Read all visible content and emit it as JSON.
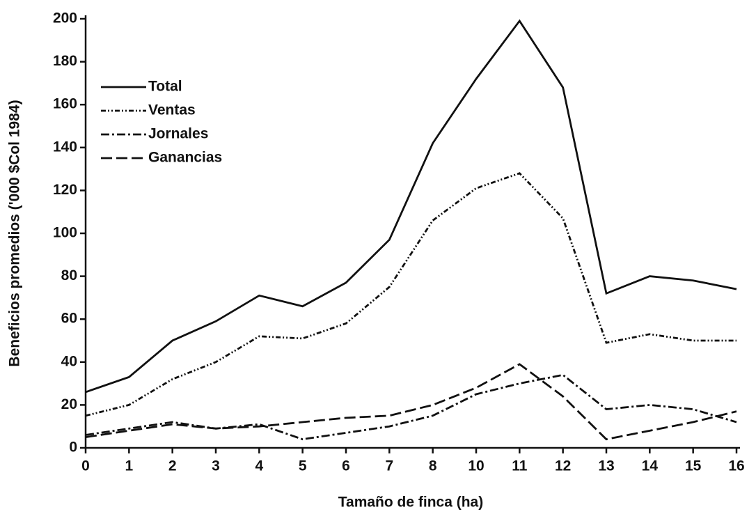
{
  "chart_data": {
    "type": "line",
    "xlabel": "Tamaño de finca (ha)",
    "ylabel": "Beneficios promedios ('000 $Col 1984)",
    "categories": [
      "0",
      "1",
      "2",
      "3",
      "4",
      "5",
      "6",
      "7",
      "8",
      "10",
      "11",
      "12",
      "13",
      "14",
      "15",
      "16"
    ],
    "series": [
      {
        "name": "Total",
        "color": "#111111",
        "style": "solid",
        "values": [
          26,
          33,
          50,
          59,
          71,
          66,
          77,
          97,
          142,
          172,
          199,
          168,
          72,
          80,
          78,
          74
        ]
      },
      {
        "name": "Ventas",
        "color": "#111111",
        "style": "dash-dot-dot",
        "values": [
          15,
          20,
          32,
          40,
          52,
          51,
          58,
          75,
          106,
          121,
          128,
          107,
          49,
          53,
          50,
          50
        ]
      },
      {
        "name": "Jornales",
        "color": "#111111",
        "style": "dash-dot",
        "values": [
          6,
          9,
          12,
          9,
          11,
          4,
          7,
          10,
          15,
          25,
          30,
          34,
          18,
          20,
          18,
          12
        ]
      },
      {
        "name": "Ganancias",
        "color": "#111111",
        "style": "dash",
        "values": [
          5,
          8,
          11,
          9,
          10,
          12,
          14,
          15,
          20,
          28,
          39,
          24,
          4,
          8,
          12,
          17
        ]
      }
    ],
    "ylim": [
      0,
      200
    ],
    "yticks": [
      0,
      20,
      40,
      60,
      80,
      100,
      120,
      140,
      160,
      180,
      200
    ],
    "legend": "upper-left",
    "grid": false
  }
}
